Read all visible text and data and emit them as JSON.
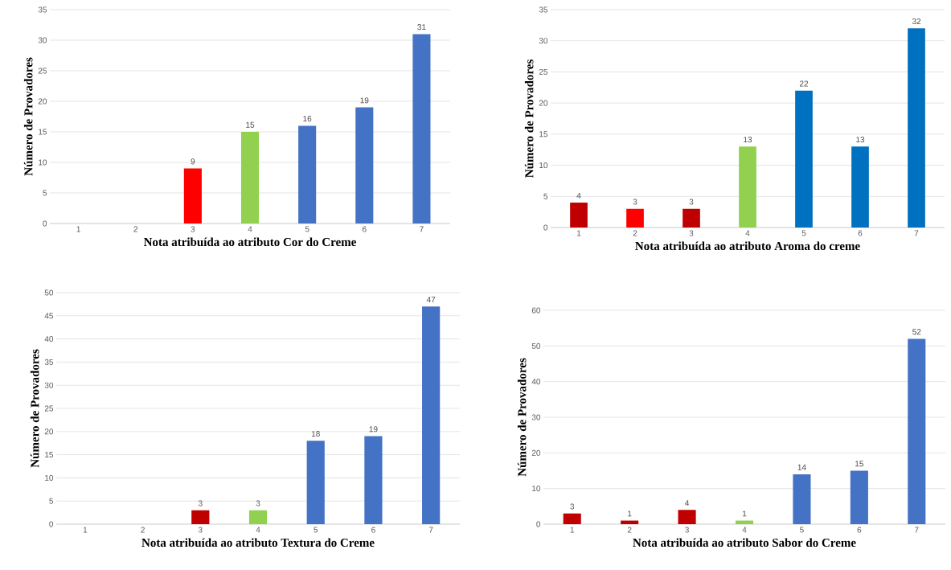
{
  "chart_data": [
    {
      "type": "bar",
      "categories": [
        "1",
        "2",
        "3",
        "4",
        "5",
        "6",
        "7"
      ],
      "values": [
        null,
        null,
        9,
        15,
        16,
        19,
        31
      ],
      "colors": [
        "#4472c4",
        "#4472c4",
        "#ff0000",
        "#92d050",
        "#4472c4",
        "#4472c4",
        "#4472c4"
      ],
      "xlabel": "Nota atribuída ao atributo Cor do Creme",
      "ylabel": "Número de Provadores",
      "ylim": [
        0,
        35
      ],
      "yticks": [
        0,
        5,
        10,
        15,
        20,
        25,
        30,
        35
      ],
      "grid": "y",
      "data_labels": true
    },
    {
      "type": "bar",
      "categories": [
        "1",
        "2",
        "3",
        "4",
        "5",
        "6",
        "7"
      ],
      "values": [
        4,
        3,
        3,
        13,
        22,
        13,
        32
      ],
      "colors": [
        "#c00000",
        "#ff0000",
        "#c00000",
        "#92d050",
        "#0070c0",
        "#0070c0",
        "#0070c0"
      ],
      "xlabel": "Nota atribuída ao atributo Aroma do creme",
      "ylabel": "Número de Provadores",
      "ylim": [
        0,
        35
      ],
      "yticks": [
        0,
        5,
        10,
        15,
        20,
        25,
        30,
        35
      ],
      "grid": "y",
      "data_labels": true
    },
    {
      "type": "bar",
      "categories": [
        "1",
        "2",
        "3",
        "4",
        "5",
        "6",
        "7"
      ],
      "values": [
        null,
        null,
        3,
        3,
        18,
        19,
        47
      ],
      "colors": [
        "#4472c4",
        "#4472c4",
        "#c00000",
        "#92d050",
        "#4472c4",
        "#4472c4",
        "#4472c4"
      ],
      "xlabel": "Nota atribuída ao atributo Textura do Creme",
      "ylabel": "Número de Provadores",
      "ylim": [
        0,
        50
      ],
      "yticks": [
        0,
        5,
        10,
        15,
        20,
        25,
        30,
        35,
        40,
        45,
        50
      ],
      "grid": "y",
      "data_labels": true
    },
    {
      "type": "bar",
      "categories": [
        "1",
        "2",
        "3",
        "4",
        "5",
        "6",
        "7"
      ],
      "values": [
        3,
        1,
        4,
        1,
        14,
        15,
        52
      ],
      "colors": [
        "#c00000",
        "#c00000",
        "#c00000",
        "#92d050",
        "#4472c4",
        "#4472c4",
        "#4472c4"
      ],
      "xlabel": "Nota atribuída ao atributo Sabor do Creme",
      "ylabel": "Número de Provadores",
      "ylim": [
        0,
        60
      ],
      "yticks": [
        0,
        10,
        20,
        30,
        40,
        50,
        60
      ],
      "grid": "y",
      "data_labels": true
    }
  ]
}
